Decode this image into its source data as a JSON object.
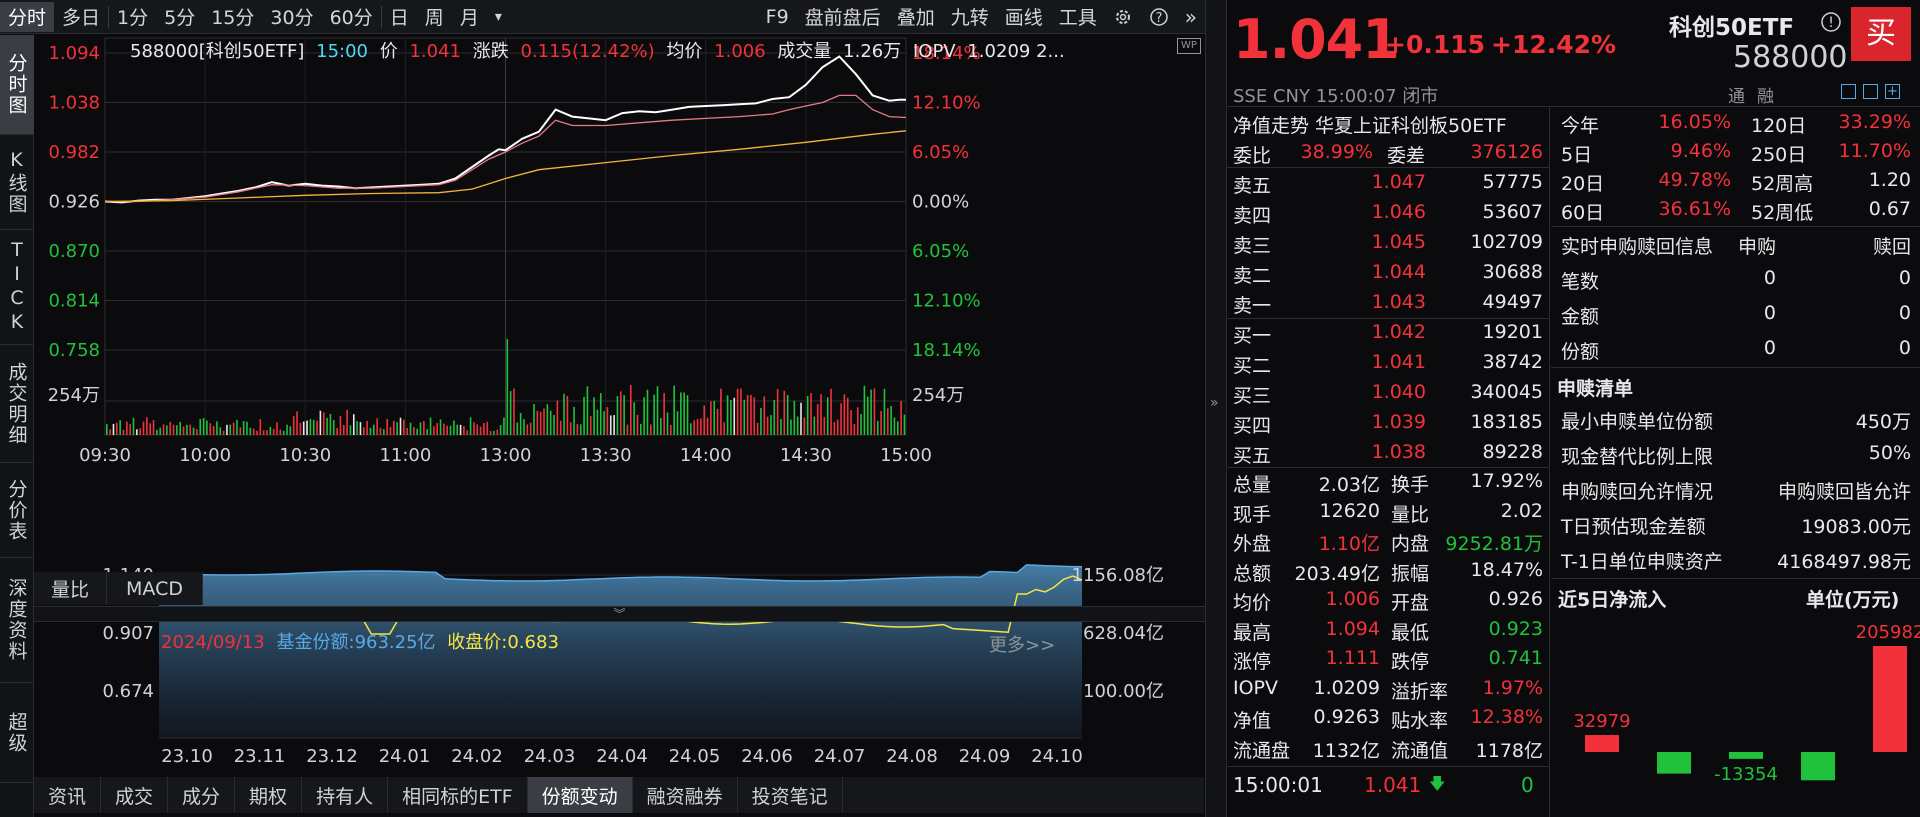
{
  "toolbar": {
    "periods": [
      "分时",
      "多日",
      "1分",
      "5分",
      "15分",
      "30分",
      "60分",
      "日",
      "周",
      "月"
    ],
    "dropdown": "▾",
    "tools": [
      "F9",
      "盘前盘后",
      "叠加",
      "九转",
      "画线",
      "工具"
    ]
  },
  "vtabs": [
    "分时图",
    "K线图",
    "TICK",
    "成交明细",
    "分价表",
    "深度资料",
    "超级"
  ],
  "info": {
    "code": "588000[科创50ETF]",
    "time": "15:00",
    "price_label": "价",
    "price": "1.041",
    "change_label": "涨跌",
    "change": "0.115(12.42%)",
    "avg_label": "均价",
    "avg": "1.006",
    "vol_label": "成交量",
    "vol": "1.26万",
    "iopv_label": "IOPV",
    "iopv": "1.0209 2..."
  },
  "chart_data": {
    "type": "line",
    "y_left": [
      "1.094",
      "1.038",
      "0.982",
      "0.926",
      "0.870",
      "0.814",
      "0.758"
    ],
    "y_right": [
      "18.14%",
      "12.10%",
      "6.05%",
      "0.00%",
      "6.05%",
      "12.10%",
      "18.14%"
    ],
    "vol_label": "254万",
    "x_ticks": [
      "09:30",
      "10:00",
      "10:30",
      "11:00",
      "13:00",
      "13:30",
      "14:00",
      "14:30",
      "15:00"
    ],
    "ylim": [
      0.758,
      1.094
    ],
    "base": 0.926,
    "series": [
      {
        "name": "价",
        "color": "#ffffff",
        "x": [
          0,
          5,
          10,
          15,
          20,
          25,
          30,
          35,
          40,
          45,
          50,
          55,
          60,
          65,
          70,
          75,
          80,
          85,
          90,
          95,
          100,
          105,
          110,
          115,
          118,
          120,
          125,
          130,
          135,
          140,
          145,
          150,
          155,
          160,
          165,
          170,
          175,
          180,
          185,
          190,
          195,
          200,
          205,
          210,
          215,
          220,
          225,
          230,
          235,
          238,
          240
        ],
        "values": [
          0.926,
          0.925,
          0.927,
          0.928,
          0.928,
          0.93,
          0.932,
          0.935,
          0.938,
          0.942,
          0.948,
          0.944,
          0.946,
          0.944,
          0.943,
          0.941,
          0.942,
          0.943,
          0.944,
          0.945,
          0.946,
          0.952,
          0.965,
          0.978,
          0.985,
          0.984,
          0.997,
          1.005,
          1.03,
          1.022,
          1.02,
          1.018,
          1.026,
          1.028,
          1.027,
          1.03,
          1.033,
          1.034,
          1.035,
          1.036,
          1.037,
          1.042,
          1.044,
          1.058,
          1.078,
          1.09,
          1.07,
          1.046,
          1.04,
          1.041,
          1.041
        ]
      },
      {
        "name": "IOPV",
        "color": "#e87a86",
        "x": [
          0,
          10,
          20,
          30,
          40,
          50,
          60,
          70,
          80,
          90,
          100,
          105,
          110,
          115,
          120,
          125,
          130,
          135,
          140,
          150,
          160,
          170,
          180,
          190,
          200,
          205,
          210,
          215,
          220,
          225,
          230,
          235,
          240
        ],
        "values": [
          0.926,
          0.926,
          0.928,
          0.931,
          0.937,
          0.945,
          0.944,
          0.941,
          0.941,
          0.943,
          0.945,
          0.95,
          0.962,
          0.974,
          0.982,
          0.992,
          1.0,
          1.018,
          1.012,
          1.012,
          1.015,
          1.018,
          1.02,
          1.022,
          1.025,
          1.03,
          1.034,
          1.038,
          1.046,
          1.046,
          1.03,
          1.022,
          1.021
        ]
      },
      {
        "name": "均价",
        "color": "#f2b63a",
        "x": [
          0,
          20,
          40,
          60,
          80,
          100,
          110,
          120,
          130,
          150,
          170,
          190,
          210,
          230,
          240
        ],
        "values": [
          0.926,
          0.927,
          0.93,
          0.933,
          0.935,
          0.936,
          0.94,
          0.952,
          0.962,
          0.97,
          0.978,
          0.985,
          0.993,
          1.002,
          1.006
        ]
      }
    ]
  },
  "subtabs": [
    "量比",
    "MACD"
  ],
  "hist": {
    "date": "2024/09/13",
    "share_label": "基金份额:",
    "share": "963.25亿",
    "close_label": "收盘价:",
    "close": "0.683",
    "more": "更多>>",
    "y_left": [
      "1.140",
      "0.907",
      "0.674"
    ],
    "y_right": [
      "1156.08亿",
      "628.04亿",
      "100.00亿"
    ],
    "x": [
      "23.10",
      "23.11",
      "23.12",
      "24.01",
      "24.02",
      "24.03",
      "24.04",
      "24.05",
      "24.06",
      "24.07",
      "24.08",
      "24.09",
      "24.10"
    ]
  },
  "bottom_tabs": [
    "资讯",
    "成交",
    "成分",
    "期权",
    "持有人",
    "相同标的ETF",
    "份额变动",
    "融资融券",
    "投资笔记"
  ],
  "quote": {
    "price": "1.041",
    "change": "+0.115",
    "pct": "+12.42%",
    "name": "科创50ETF",
    "code": "588000",
    "buy": "买",
    "market": "SSE",
    "currency": "CNY",
    "time": "15:00:07",
    "status": "闭市",
    "flags": [
      "通",
      "融"
    ]
  },
  "nav_title": "净值走势 华夏上证科创板50ETF",
  "weibi": {
    "l1": "委比",
    "v1": "38.99%",
    "l2": "委差",
    "v2": "376126"
  },
  "asks": [
    {
      "label": "卖五",
      "price": "1.047",
      "vol": "57775"
    },
    {
      "label": "卖四",
      "price": "1.046",
      "vol": "53607"
    },
    {
      "label": "卖三",
      "price": "1.045",
      "vol": "102709"
    },
    {
      "label": "卖二",
      "price": "1.044",
      "vol": "30688"
    },
    {
      "label": "卖一",
      "price": "1.043",
      "vol": "49497"
    }
  ],
  "bids": [
    {
      "label": "买一",
      "price": "1.042",
      "vol": "19201"
    },
    {
      "label": "买二",
      "price": "1.041",
      "vol": "38742"
    },
    {
      "label": "买三",
      "price": "1.040",
      "vol": "340045"
    },
    {
      "label": "买四",
      "price": "1.039",
      "vol": "183185"
    },
    {
      "label": "买五",
      "price": "1.038",
      "vol": "89228"
    }
  ],
  "stats": [
    {
      "l1": "总量",
      "v1": "2.03亿",
      "c1": "white",
      "l2": "换手",
      "v2": "17.92%",
      "c2": "white"
    },
    {
      "l1": "现手",
      "v1": "12620",
      "c1": "white",
      "l2": "量比",
      "v2": "2.02",
      "c2": "white"
    },
    {
      "l1": "外盘",
      "v1": "1.10亿",
      "c1": "red",
      "l2": "内盘",
      "v2": "9252.81万",
      "c2": "green"
    },
    {
      "l1": "总额",
      "v1": "203.49亿",
      "c1": "white",
      "l2": "振幅",
      "v2": "18.47%",
      "c2": "white"
    },
    {
      "l1": "均价",
      "v1": "1.006",
      "c1": "red",
      "l2": "开盘",
      "v2": "0.926",
      "c2": "white"
    },
    {
      "l1": "最高",
      "v1": "1.094",
      "c1": "red",
      "l2": "最低",
      "v2": "0.923",
      "c2": "green"
    },
    {
      "l1": "涨停",
      "v1": "1.111",
      "c1": "red",
      "l2": "跌停",
      "v2": "0.741",
      "c2": "green"
    },
    {
      "l1": "IOPV",
      "v1": "1.0209",
      "c1": "white",
      "l2": "溢折率",
      "v2": "1.97%",
      "c2": "red"
    },
    {
      "l1": "净值",
      "v1": "0.9263",
      "c1": "white",
      "l2": "贴水率",
      "v2": "12.38%",
      "c2": "red"
    },
    {
      "l1": "流通盘",
      "v1": "1132亿",
      "c1": "white",
      "l2": "流通值",
      "v2": "1178亿",
      "c2": "white"
    }
  ],
  "last_tick": {
    "time": "15:00:01",
    "price": "1.041",
    "arrow": "🡇",
    "vol": "0"
  },
  "perf": [
    {
      "l1": "今年",
      "v1": "16.05%",
      "c1": "red",
      "l2": "120日",
      "v2": "33.29%",
      "c2": "red"
    },
    {
      "l1": "5日",
      "v1": "9.46%",
      "c1": "red",
      "l2": "250日",
      "v2": "11.70%",
      "c2": "red"
    },
    {
      "l1": "20日",
      "v1": "49.78%",
      "c1": "red",
      "l2": "52周高",
      "v2": "1.20",
      "c2": "white"
    },
    {
      "l1": "60日",
      "v1": "36.61%",
      "c1": "red",
      "l2": "52周低",
      "v2": "0.67",
      "c2": "white"
    }
  ],
  "sub_info": {
    "header": [
      "实时申购赎回信息",
      "申购",
      "赎回"
    ],
    "rows": [
      {
        "label": "笔数",
        "buy": "0",
        "sell": "0"
      },
      {
        "label": "金额",
        "buy": "0",
        "sell": "0"
      },
      {
        "label": "份额",
        "buy": "0",
        "sell": "0"
      }
    ]
  },
  "redeem": {
    "title": "申赎清单",
    "rows": [
      {
        "label": "最小申赎单位份额",
        "value": "450万"
      },
      {
        "label": "现金替代比例上限",
        "value": "50%"
      },
      {
        "label": "申购赎回允许情况",
        "value": "申购赎回皆允许"
      },
      {
        "label": "T日预估现金差额",
        "value": "19083.00元"
      },
      {
        "label": "T-1日单位申赎资产",
        "value": "4168497.98元"
      }
    ]
  },
  "flow": {
    "title": "近5日净流入",
    "unit": "单位(万元)",
    "values": [
      32979,
      -42000,
      -13354,
      -55000,
      205982
    ],
    "labels": [
      "32979",
      "",
      "-13354",
      "",
      "205982"
    ]
  },
  "colors": {
    "up": "#f2323a",
    "down": "#1fc23a",
    "bg": "#0b0b0e",
    "grid": "#2a2c31"
  }
}
